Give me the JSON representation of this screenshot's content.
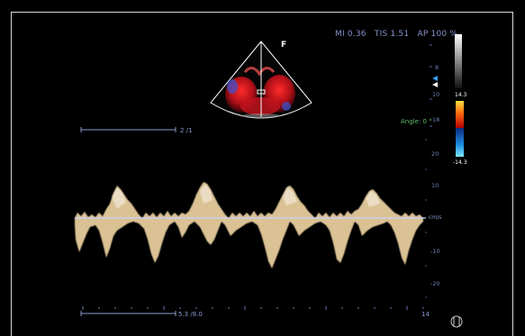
{
  "readout": {
    "mi": "MI 0.36",
    "tis": "TIS 1.51",
    "ap": "AP 100 %"
  },
  "sector": {
    "marker": "F"
  },
  "color_scale": {
    "top_value": "14.3",
    "bottom_value": "-14.3",
    "colors": {
      "positive": "#ff3b1f",
      "negative": "#1e8fe0",
      "gray_top": "#ffffff"
    }
  },
  "depth_ticks": [
    "8",
    "10",
    "18"
  ],
  "angle": {
    "label": "Angle:",
    "value": "0 °"
  },
  "scales": {
    "top_ruler_label": "2 /1",
    "bottom_ruler_label": "5.3 /8.0",
    "bottom_right_value": "14"
  },
  "velocity_axis": {
    "ticks": [
      "20",
      "10",
      "-10",
      "-20"
    ],
    "unit": "cm/s"
  },
  "colors": {
    "text_primary": "#8a9bd0",
    "doppler_trace": "#f2d7a4",
    "baseline": "#c8d0ff",
    "angle_text": "#5fbf6a"
  }
}
